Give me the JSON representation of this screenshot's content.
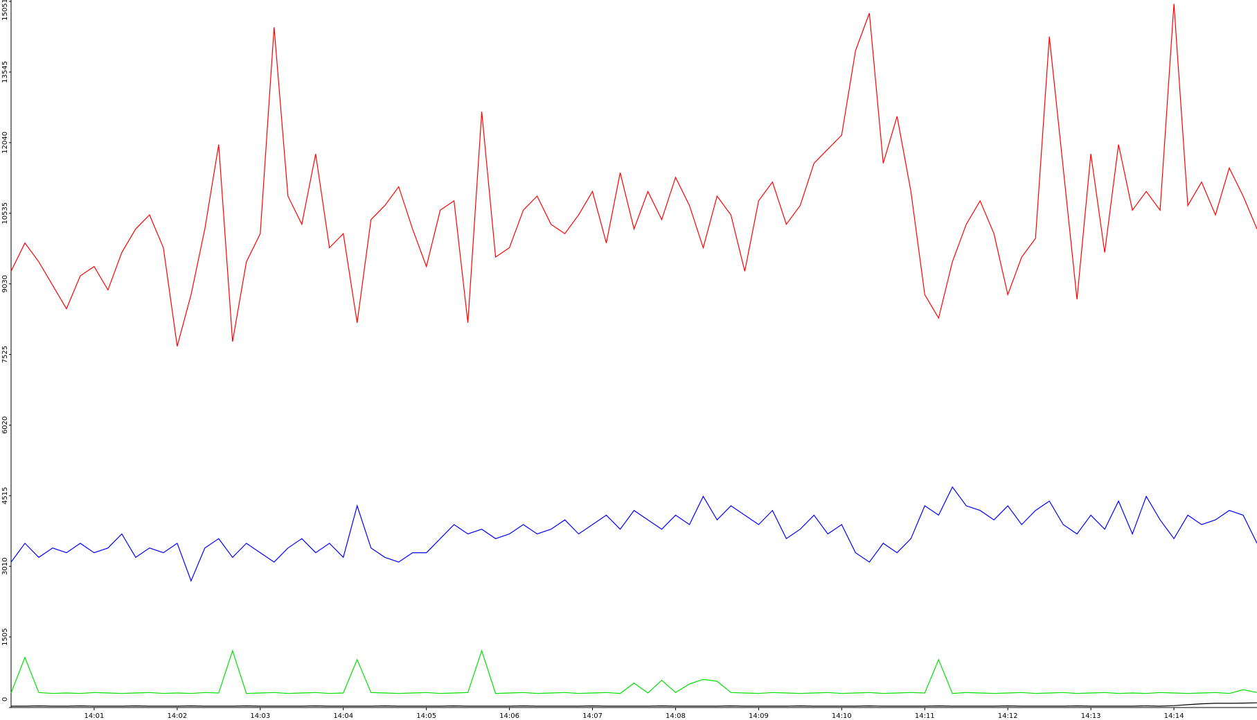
{
  "chart_data": {
    "type": "line",
    "categories": [
      null,
      null,
      null,
      null,
      null,
      null,
      "14:01",
      null,
      null,
      null,
      null,
      null,
      "14:02",
      null,
      null,
      null,
      null,
      null,
      "14:03",
      null,
      null,
      null,
      null,
      null,
      "14:04",
      null,
      null,
      null,
      null,
      null,
      "14:05",
      null,
      null,
      null,
      null,
      null,
      "14:06",
      null,
      null,
      null,
      null,
      null,
      "14:07",
      null,
      null,
      null,
      null,
      null,
      "14:08",
      null,
      null,
      null,
      null,
      null,
      "14:09",
      null,
      null,
      null,
      null,
      null,
      "14:10",
      null,
      null,
      null,
      null,
      null,
      "14:11",
      null,
      null,
      null,
      null,
      null,
      "14:12",
      null,
      null,
      null,
      null,
      null,
      "14:13",
      null,
      null,
      null,
      null,
      null,
      "14:14",
      null,
      null,
      null,
      null,
      null,
      null
    ],
    "ylim": [
      0,
      15051
    ],
    "yticks": [
      0,
      1505,
      3010,
      4515,
      6020,
      7525,
      9030,
      10535,
      12040,
      13545,
      15051
    ],
    "series": [
      {
        "color": "#ff0000",
        "values": [
          9300,
          9900,
          9500,
          9000,
          8500,
          9200,
          9400,
          8900,
          9700,
          10200,
          10500,
          9800,
          7700,
          8800,
          10200,
          12000,
          7800,
          9500,
          10100,
          14500,
          10900,
          10300,
          11800,
          9800,
          10100,
          8200,
          10400,
          10700,
          11100,
          10200,
          9400,
          10600,
          10800,
          8200,
          12700,
          9600,
          9800,
          10600,
          10900,
          10300,
          10100,
          10500,
          11000,
          9900,
          11400,
          10200,
          11000,
          10400,
          11300,
          10700,
          9800,
          10900,
          10500,
          9300,
          10800,
          11200,
          10300,
          10700,
          11600,
          11900,
          12200,
          14000,
          14800,
          11600,
          12600,
          11000,
          8800,
          8300,
          9500,
          10300,
          10800,
          10100,
          8800,
          9600,
          10000,
          14300,
          11500,
          8700,
          11800,
          9700,
          12000,
          10600,
          11000,
          10600,
          15000,
          10700,
          11200,
          10500,
          11500,
          10900,
          10200
        ]
      },
      {
        "color": "#0000ff",
        "values": [
          3100,
          3500,
          3200,
          3400,
          3300,
          3500,
          3300,
          3400,
          3700,
          3200,
          3400,
          3300,
          3500,
          2700,
          3400,
          3600,
          3200,
          3500,
          3300,
          3100,
          3400,
          3600,
          3300,
          3500,
          3200,
          4300,
          3400,
          3200,
          3100,
          3300,
          3300,
          3600,
          3900,
          3700,
          3800,
          3600,
          3700,
          3900,
          3700,
          3800,
          4000,
          3700,
          3900,
          4100,
          3800,
          4200,
          4000,
          3800,
          4100,
          3900,
          4500,
          4000,
          4300,
          4100,
          3900,
          4200,
          3600,
          3800,
          4100,
          3700,
          3900,
          3300,
          3100,
          3500,
          3300,
          3600,
          4300,
          4100,
          4700,
          4300,
          4200,
          4000,
          4300,
          3900,
          4200,
          4400,
          3900,
          3700,
          4100,
          3800,
          4400,
          3700,
          4500,
          4000,
          3600,
          4100,
          3900,
          4000,
          4200,
          4100,
          3500
        ]
      },
      {
        "color": "#00e000",
        "values": [
          310,
          1070,
          320,
          300,
          310,
          300,
          320,
          310,
          300,
          310,
          320,
          300,
          310,
          300,
          320,
          310,
          1210,
          300,
          310,
          320,
          300,
          310,
          320,
          300,
          310,
          1020,
          320,
          310,
          300,
          310,
          320,
          300,
          310,
          320,
          1210,
          300,
          310,
          320,
          300,
          310,
          320,
          300,
          310,
          320,
          300,
          520,
          310,
          580,
          320,
          500,
          600,
          560,
          320,
          310,
          300,
          320,
          310,
          300,
          310,
          320,
          300,
          310,
          320,
          300,
          310,
          320,
          310,
          1020,
          300,
          320,
          310,
          300,
          310,
          320,
          300,
          310,
          320,
          300,
          310,
          320,
          300,
          310,
          300,
          320,
          310,
          300,
          310,
          320,
          300,
          380,
          320
        ]
      },
      {
        "color": "#000000",
        "values": [
          30,
          30,
          35,
          30,
          30,
          35,
          30,
          30,
          30,
          35,
          30,
          30,
          30,
          35,
          30,
          30,
          30,
          35,
          30,
          30,
          30,
          30,
          35,
          30,
          30,
          30,
          30,
          35,
          30,
          30,
          30,
          30,
          35,
          30,
          30,
          30,
          30,
          35,
          30,
          30,
          30,
          30,
          35,
          30,
          30,
          30,
          30,
          35,
          30,
          30,
          30,
          30,
          35,
          30,
          30,
          30,
          30,
          35,
          30,
          30,
          30,
          30,
          35,
          30,
          30,
          30,
          30,
          35,
          30,
          30,
          30,
          30,
          35,
          30,
          30,
          30,
          30,
          35,
          30,
          30,
          30,
          30,
          35,
          30,
          40,
          60,
          80,
          90,
          90,
          95,
          100
        ]
      }
    ]
  }
}
